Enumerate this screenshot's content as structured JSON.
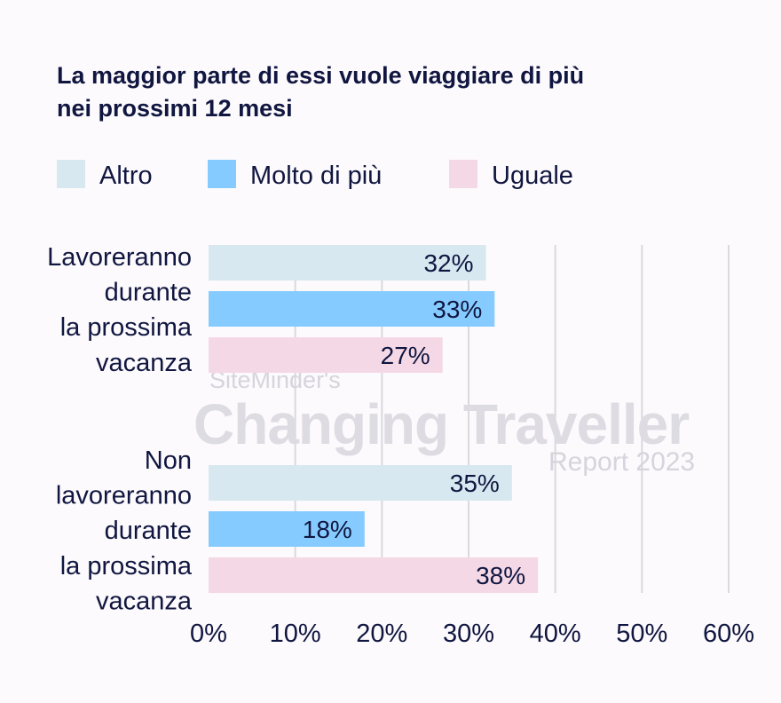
{
  "chart_data": {
    "type": "bar",
    "orientation": "horizontal",
    "title_lines": [
      "La maggior parte di essi vuole viaggiare di più",
      "nei prossimi 12 mesi"
    ],
    "categories": [
      {
        "lines": [
          "Lavoreranno",
          "durante",
          "la prossima",
          "vacanza"
        ]
      },
      {
        "lines": [
          "Non",
          "lavoreranno",
          "durante",
          "la prossima",
          "vacanza"
        ]
      }
    ],
    "series": [
      {
        "name": "Altro",
        "color": "#d7e8f0",
        "values": [
          32,
          35
        ],
        "labels": [
          "32%",
          "35%"
        ]
      },
      {
        "name": "Molto di più",
        "color": "#86cbff",
        "values": [
          33,
          18
        ],
        "labels": [
          "33%",
          "18%"
        ]
      },
      {
        "name": "Uguale",
        "color": "#f5d8e6",
        "values": [
          27,
          38
        ],
        "labels": [
          "27%",
          "38%"
        ]
      }
    ],
    "x_ticks": [
      "0%",
      "10%",
      "20%",
      "30%",
      "40%",
      "50%",
      "60%"
    ],
    "xlim": [
      0,
      60
    ],
    "grid": true,
    "legend_position": "top"
  },
  "watermark": {
    "line1": "SiteMinder's",
    "line2": "Changing Traveller",
    "line3": "Report 2023"
  },
  "colors": {
    "text": "#101640",
    "grid": "#d9d9de",
    "background": "#fcfafc"
  }
}
